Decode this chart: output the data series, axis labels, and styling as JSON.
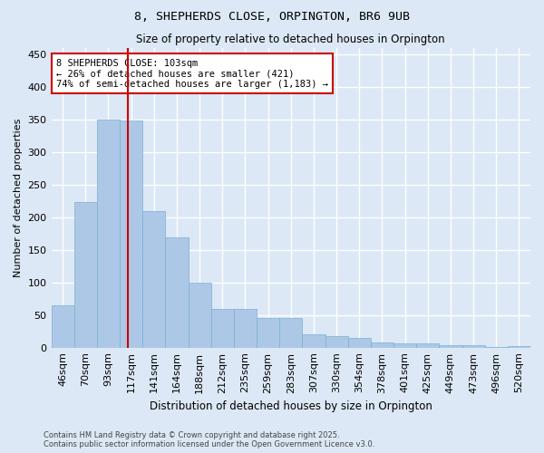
{
  "title": "8, SHEPHERDS CLOSE, ORPINGTON, BR6 9UB",
  "subtitle": "Size of property relative to detached houses in Orpington",
  "xlabel": "Distribution of detached houses by size in Orpington",
  "ylabel": "Number of detached properties",
  "footer_line1": "Contains HM Land Registry data © Crown copyright and database right 2025.",
  "footer_line2": "Contains public sector information licensed under the Open Government Licence v3.0.",
  "bin_labels": [
    "46sqm",
    "70sqm",
    "93sqm",
    "117sqm",
    "141sqm",
    "164sqm",
    "188sqm",
    "212sqm",
    "235sqm",
    "259sqm",
    "283sqm",
    "307sqm",
    "330sqm",
    "354sqm",
    "378sqm",
    "401sqm",
    "425sqm",
    "449sqm",
    "473sqm",
    "496sqm",
    "520sqm"
  ],
  "bar_heights": [
    65,
    224,
    350,
    349,
    210,
    169,
    100,
    60,
    60,
    45,
    45,
    20,
    17,
    15,
    8,
    7,
    7,
    4,
    4,
    1,
    3
  ],
  "bar_color": "#adc8e6",
  "bar_edge_color": "#7aafd4",
  "vline_index": 2.85,
  "annotation_title": "8 SHEPHERDS CLOSE: 103sqm",
  "annotation_line2": "← 26% of detached houses are smaller (421)",
  "annotation_line3": "74% of semi-detached houses are larger (1,183) →",
  "annotation_box_color": "#ffffff",
  "annotation_box_edge": "#cc0000",
  "vline_color": "#cc0000",
  "ylim": [
    0,
    460
  ],
  "yticks": [
    0,
    50,
    100,
    150,
    200,
    250,
    300,
    350,
    400,
    450
  ],
  "background_color": "#dce8f5",
  "grid_color": "#ffffff"
}
